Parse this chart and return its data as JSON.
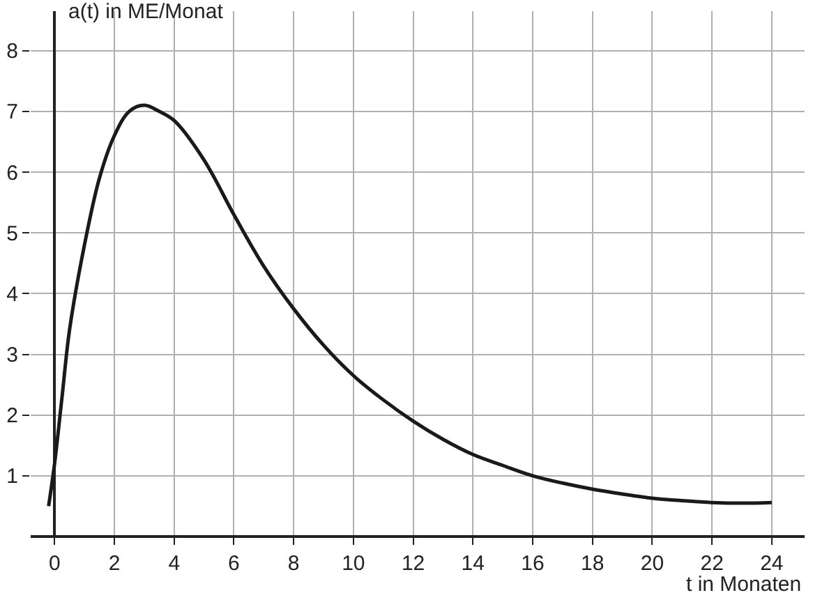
{
  "chart_data": {
    "type": "line",
    "xlabel": "t in Monaten",
    "ylabel": "a(t) in ME/Monat",
    "xlim": [
      -0.8,
      25.1
    ],
    "ylim": [
      0,
      8.65
    ],
    "xticks": [
      0,
      2,
      4,
      6,
      8,
      10,
      12,
      14,
      16,
      18,
      20,
      22,
      24
    ],
    "yticks": [
      1,
      2,
      3,
      4,
      5,
      6,
      7,
      8
    ],
    "grid": true,
    "marker": "none",
    "line_style": "solid",
    "series": [
      {
        "color": "#1a1a1a",
        "x": [
          -0.2,
          0,
          0.25,
          0.5,
          1,
          1.5,
          2,
          2.5,
          3,
          3.5,
          4,
          5,
          6,
          7,
          8,
          9,
          10,
          11,
          12,
          13,
          14,
          15,
          16,
          17,
          18,
          19,
          20,
          21,
          22,
          23,
          24
        ],
        "values": [
          0.5,
          1.2,
          2.3,
          3.4,
          4.8,
          5.9,
          6.6,
          7.0,
          7.1,
          7.0,
          6.85,
          6.2,
          5.3,
          4.45,
          3.75,
          3.15,
          2.65,
          2.25,
          1.9,
          1.6,
          1.35,
          1.17,
          1.0,
          0.88,
          0.78,
          0.7,
          0.63,
          0.59,
          0.56,
          0.55,
          0.56
        ]
      }
    ]
  }
}
